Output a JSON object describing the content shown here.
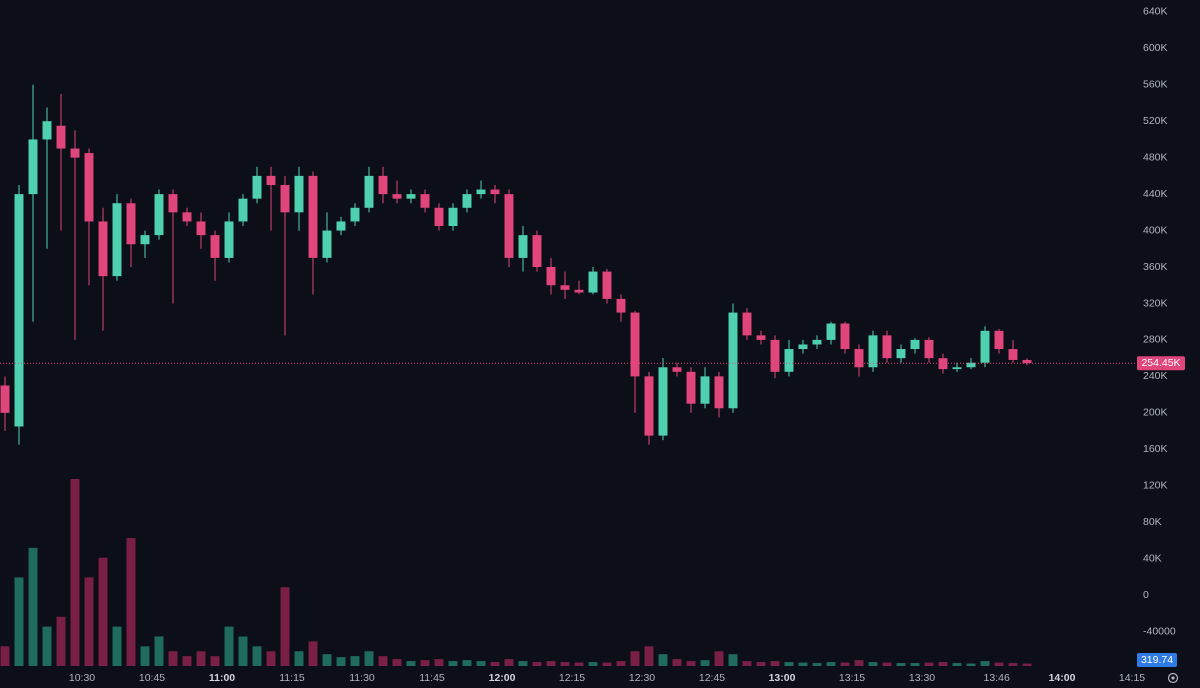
{
  "chart_data": {
    "type": "candlestick",
    "x": [
      "10:12",
      "10:15",
      "10:18",
      "10:21",
      "10:24",
      "10:27",
      "10:30",
      "10:33",
      "10:36",
      "10:39",
      "10:42",
      "10:45",
      "10:48",
      "10:51",
      "10:54",
      "10:57",
      "11:00",
      "11:03",
      "11:06",
      "11:09",
      "11:12",
      "11:15",
      "11:18",
      "11:21",
      "11:24",
      "11:27",
      "11:30",
      "11:33",
      "11:36",
      "11:39",
      "11:42",
      "11:45",
      "11:48",
      "11:51",
      "11:54",
      "11:57",
      "12:00",
      "12:03",
      "12:06",
      "12:09",
      "12:12",
      "12:15",
      "12:18",
      "12:21",
      "12:24",
      "12:27",
      "12:30",
      "12:33",
      "12:36",
      "12:39",
      "12:42",
      "12:45",
      "12:48",
      "12:51",
      "12:54",
      "12:57",
      "13:00",
      "13:03",
      "13:06",
      "13:09",
      "13:12",
      "13:15",
      "13:18",
      "13:21",
      "13:24",
      "13:27",
      "13:30",
      "13:33",
      "13:36",
      "13:39",
      "13:42",
      "13:45",
      "13:48",
      "13:51"
    ],
    "open": [
      230000,
      185000,
      440000,
      500000,
      515000,
      490000,
      485000,
      410000,
      350000,
      430000,
      385000,
      395000,
      440000,
      420000,
      410000,
      395000,
      370000,
      410000,
      435000,
      460000,
      450000,
      420000,
      460000,
      370000,
      400000,
      410000,
      425000,
      460000,
      440000,
      435000,
      440000,
      425000,
      405000,
      425000,
      440000,
      445000,
      440000,
      370000,
      395000,
      360000,
      340000,
      335000,
      332000,
      355000,
      325000,
      310000,
      240000,
      175000,
      250000,
      245000,
      210000,
      240000,
      205000,
      310000,
      285000,
      280000,
      245000,
      270000,
      275000,
      280000,
      298000,
      270000,
      250000,
      285000,
      260000,
      270000,
      280000,
      260000,
      248000,
      250000,
      255000,
      290000,
      270000,
      258000
    ],
    "high": [
      240000,
      450000,
      560000,
      535000,
      550000,
      510000,
      490000,
      425000,
      440000,
      435000,
      400000,
      445000,
      445000,
      425000,
      420000,
      400000,
      420000,
      440000,
      470000,
      470000,
      460000,
      470000,
      465000,
      420000,
      415000,
      430000,
      470000,
      470000,
      455000,
      445000,
      445000,
      430000,
      430000,
      445000,
      455000,
      450000,
      445000,
      405000,
      400000,
      370000,
      355000,
      345000,
      360000,
      358000,
      330000,
      312000,
      245000,
      260000,
      255000,
      250000,
      250000,
      245000,
      320000,
      315000,
      290000,
      285000,
      280000,
      280000,
      285000,
      300000,
      300000,
      275000,
      290000,
      290000,
      275000,
      282000,
      283000,
      265000,
      255000,
      260000,
      295000,
      292000,
      280000,
      260000
    ],
    "low": [
      180000,
      165000,
      300000,
      380000,
      400000,
      280000,
      340000,
      290000,
      345000,
      360000,
      370000,
      390000,
      320000,
      405000,
      380000,
      345000,
      365000,
      405000,
      430000,
      400000,
      285000,
      400000,
      330000,
      365000,
      395000,
      405000,
      420000,
      430000,
      430000,
      430000,
      420000,
      400000,
      400000,
      420000,
      435000,
      430000,
      360000,
      355000,
      355000,
      330000,
      325000,
      330000,
      330000,
      320000,
      300000,
      200000,
      165000,
      170000,
      240000,
      200000,
      205000,
      195000,
      200000,
      280000,
      275000,
      238000,
      240000,
      265000,
      270000,
      275000,
      265000,
      240000,
      245000,
      255000,
      255000,
      265000,
      255000,
      243000,
      245000,
      248000,
      250000,
      265000,
      255000,
      252000
    ],
    "close": [
      200000,
      440000,
      500000,
      520000,
      490000,
      480000,
      410000,
      350000,
      430000,
      385000,
      395000,
      440000,
      420000,
      410000,
      395000,
      370000,
      410000,
      435000,
      460000,
      450000,
      420000,
      460000,
      370000,
      400000,
      410000,
      425000,
      460000,
      440000,
      435000,
      440000,
      425000,
      405000,
      425000,
      440000,
      445000,
      440000,
      370000,
      395000,
      360000,
      340000,
      335000,
      332000,
      355000,
      325000,
      310000,
      240000,
      175000,
      250000,
      245000,
      210000,
      240000,
      205000,
      310000,
      285000,
      280000,
      245000,
      270000,
      275000,
      280000,
      298000,
      270000,
      250000,
      285000,
      260000,
      270000,
      280000,
      260000,
      248000,
      250000,
      255000,
      290000,
      270000,
      258000,
      254450
    ],
    "volume": [
      2000,
      9000,
      12000,
      4000,
      5000,
      19000,
      9000,
      11000,
      4000,
      13000,
      2000,
      3000,
      1500,
      1000,
      1500,
      1000,
      4000,
      3000,
      2000,
      1500,
      8000,
      1500,
      2500,
      1200,
      900,
      1000,
      1500,
      1000,
      700,
      500,
      600,
      700,
      500,
      600,
      500,
      400,
      700,
      500,
      400,
      500,
      400,
      350,
      400,
      350,
      500,
      1500,
      2000,
      1200,
      700,
      500,
      600,
      1500,
      1200,
      500,
      400,
      500,
      400,
      350,
      300,
      400,
      350,
      600,
      400,
      350,
      300,
      300,
      350,
      400,
      300,
      250,
      500,
      350,
      300,
      250
    ],
    "up_color": "#4fd1b0",
    "down_color": "#e0457b",
    "up_volume_color": "#1f6b5e",
    "down_volume_color": "#7a1f45",
    "ylim": [
      -80000,
      653000
    ],
    "yticks": [
      {
        "value": 640000,
        "label": "640K"
      },
      {
        "value": 600000,
        "label": "600K"
      },
      {
        "value": 560000,
        "label": "560K"
      },
      {
        "value": 520000,
        "label": "520K"
      },
      {
        "value": 480000,
        "label": "480K"
      },
      {
        "value": 440000,
        "label": "440K"
      },
      {
        "value": 400000,
        "label": "400K"
      },
      {
        "value": 360000,
        "label": "360K"
      },
      {
        "value": 320000,
        "label": "320K"
      },
      {
        "value": 280000,
        "label": "280K"
      },
      {
        "value": 240000,
        "label": "240K"
      },
      {
        "value": 200000,
        "label": "200K"
      },
      {
        "value": 160000,
        "label": "160K"
      },
      {
        "value": 120000,
        "label": "120K"
      },
      {
        "value": 80000,
        "label": "80K"
      },
      {
        "value": 40000,
        "label": "40K"
      },
      0,
      -40000
    ],
    "xticks": [
      "10:30",
      "10:45",
      "11:00",
      "11:15",
      "11:30",
      "11:45",
      "12:00",
      "12:15",
      "12:30",
      "12:45",
      "13:00",
      "13:15",
      "13:30",
      "13:46",
      "14:00",
      "14:15"
    ],
    "last_price": {
      "value": 254450,
      "label": "254.45K"
    },
    "volume_label": 319.74,
    "grid": true
  }
}
